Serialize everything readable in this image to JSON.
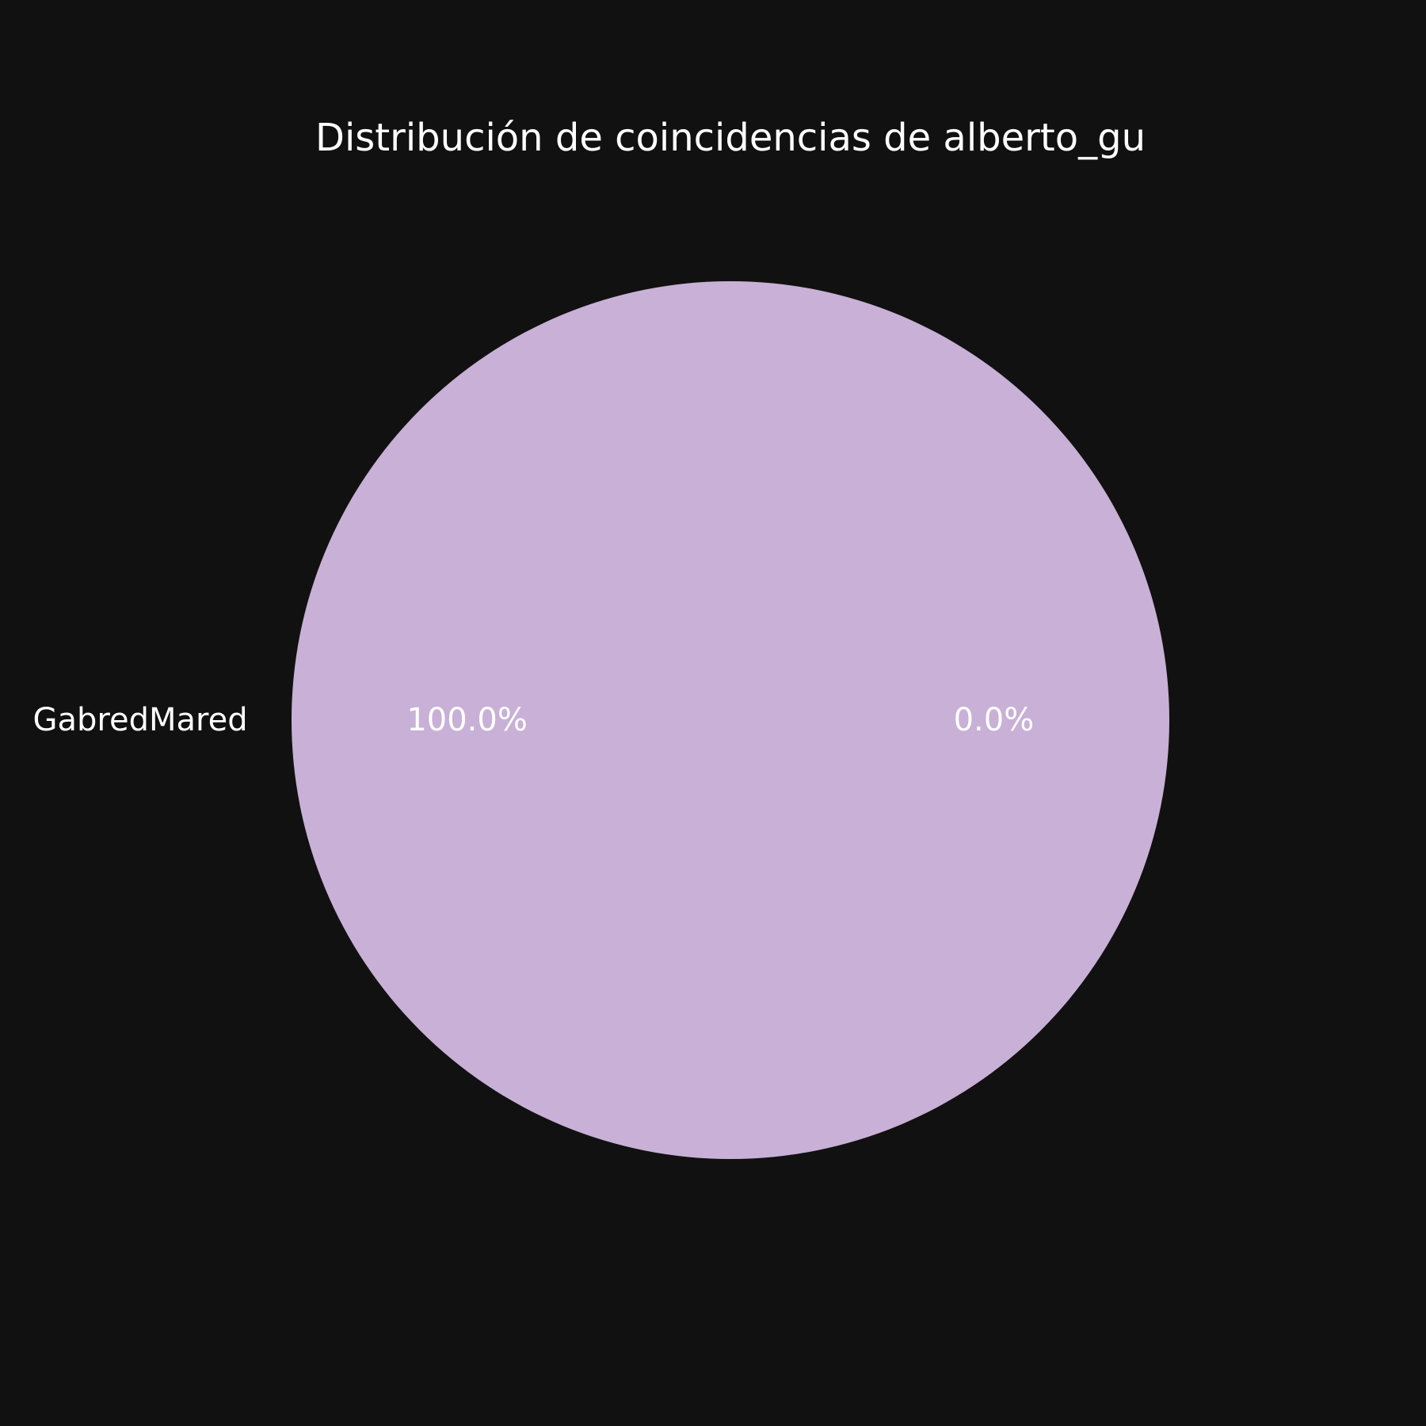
{
  "chart_data": {
    "type": "pie",
    "title": "Distribución de coincidencias de alberto_gu",
    "slices": [
      {
        "label": "GabredMared",
        "value": 100.0,
        "pct_label": "100.0%",
        "color": "#c8b0d6"
      },
      {
        "label": "",
        "value": 0.0,
        "pct_label": "0.0%",
        "color": "#c8b0d6"
      }
    ],
    "background_color": "#111111",
    "text_color": "#ffffff",
    "legend": "none"
  }
}
